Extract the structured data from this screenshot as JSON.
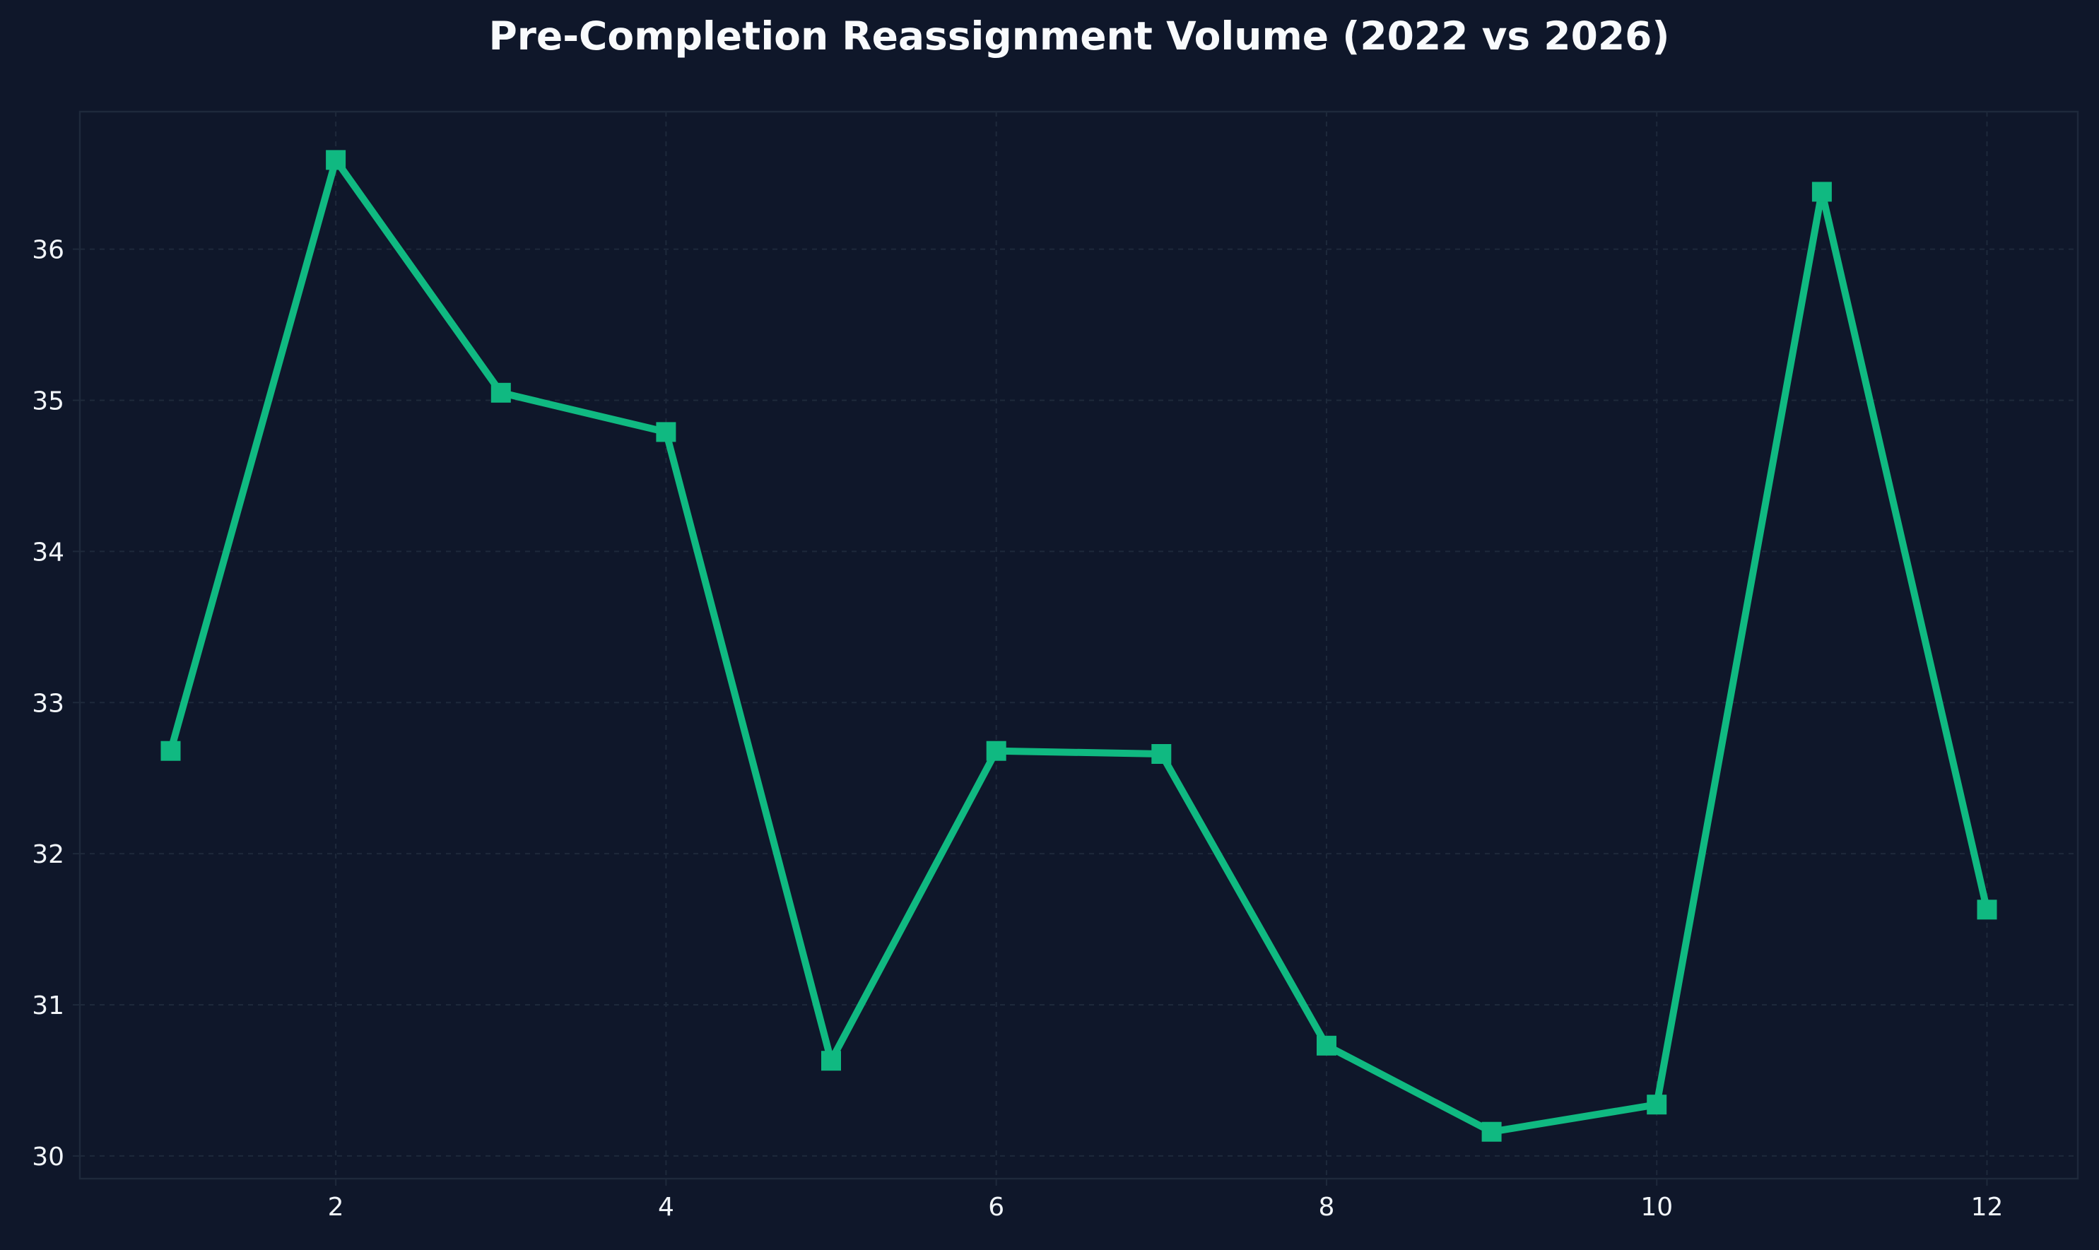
{
  "chart_data": {
    "type": "line",
    "title": "Pre-Completion Reassignment Volume (2022 vs 2026)",
    "xlabel": "",
    "ylabel": "",
    "x": [
      1,
      2,
      3,
      4,
      5,
      6,
      7,
      8,
      9,
      10,
      11,
      12
    ],
    "series": [
      {
        "values": [
          32.68,
          36.59,
          35.05,
          34.79,
          30.63,
          32.68,
          32.66,
          30.73,
          30.16,
          30.34,
          36.38,
          31.63
        ],
        "color": "#10b981",
        "marker": "square"
      }
    ],
    "xlim": [
      0.45,
      12.55
    ],
    "ylim": [
      29.85,
      36.91
    ],
    "xticks": [
      2,
      4,
      6,
      8,
      10,
      12
    ],
    "yticks": [
      30,
      31,
      32,
      33,
      34,
      35,
      36
    ],
    "grid": true,
    "legend": "none",
    "colors": {
      "background": "#0f172a",
      "plot_background": "#0f172a",
      "axes_edge": "#1e293b",
      "grid": "#1e293b",
      "text": "#f1f5f9"
    }
  }
}
